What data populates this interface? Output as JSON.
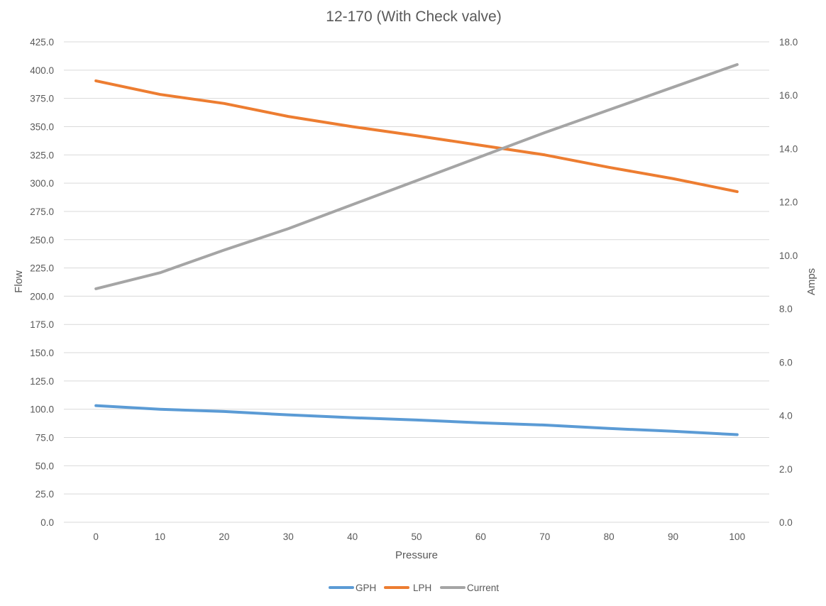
{
  "chart_data": {
    "type": "line",
    "title": "12-170 (With Check valve)",
    "xlabel": "Pressure",
    "ylabel": "Flow",
    "y2label": "Amps",
    "x": [
      0,
      10,
      20,
      30,
      40,
      50,
      60,
      70,
      80,
      90,
      100
    ],
    "ylim": [
      0,
      425
    ],
    "y_ticks": [
      "0.0",
      "25.0",
      "50.0",
      "75.0",
      "100.0",
      "125.0",
      "150.0",
      "175.0",
      "200.0",
      "225.0",
      "250.0",
      "275.0",
      "300.0",
      "325.0",
      "350.0",
      "375.0",
      "400.0",
      "425.0"
    ],
    "y2lim": [
      0,
      18
    ],
    "y2_ticks": [
      "0.0",
      "2.0",
      "4.0",
      "6.0",
      "8.0",
      "10.0",
      "12.0",
      "14.0",
      "16.0",
      "18.0"
    ],
    "grid": true,
    "legend_position": "bottom",
    "series": [
      {
        "name": "GPH",
        "axis": "left",
        "color": "#5b9bd5",
        "values": [
          103.2,
          100.0,
          98.0,
          95.0,
          92.5,
          90.5,
          88.0,
          86.0,
          83.0,
          80.5,
          77.5
        ]
      },
      {
        "name": "LPH",
        "axis": "left",
        "color": "#ed7d31",
        "values": [
          390.5,
          378.5,
          370.5,
          359.0,
          350.0,
          342.0,
          333.5,
          325.0,
          314.0,
          304.0,
          292.5
        ]
      },
      {
        "name": "Current",
        "axis": "right",
        "color": "#a5a5a5",
        "values": [
          8.75,
          9.35,
          10.2,
          11.0,
          11.9,
          12.8,
          13.7,
          14.6,
          15.45,
          16.3,
          17.15
        ]
      }
    ]
  }
}
